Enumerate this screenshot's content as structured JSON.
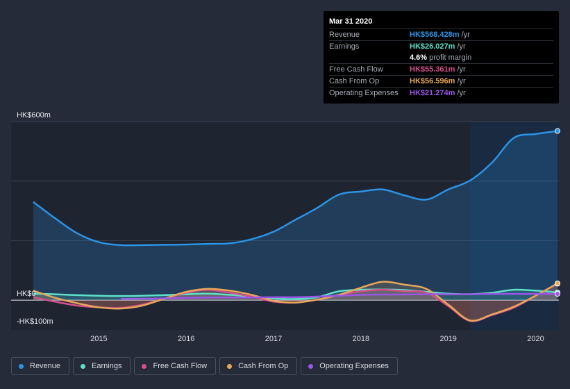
{
  "chart_data": {
    "type": "area",
    "title": "",
    "y_axis_labels": [
      {
        "value": 600,
        "label": "HK$600m"
      },
      {
        "value": 0,
        "label": "HK$0"
      },
      {
        "value": -100,
        "label": "-HK$100m"
      }
    ],
    "ylim": [
      -100,
      600
    ],
    "xlim": [
      2014.2,
      2020.25
    ],
    "x_ticks": [
      2015,
      2016,
      2017,
      2018,
      2019,
      2020
    ],
    "highlight_start": 2019.25,
    "series": [
      {
        "name": "Revenue",
        "color": "#2b94e6",
        "fill": true,
        "points": [
          [
            2014.25,
            330
          ],
          [
            2014.5,
            275
          ],
          [
            2014.75,
            225
          ],
          [
            2015.0,
            195
          ],
          [
            2015.25,
            185
          ],
          [
            2015.5,
            185
          ],
          [
            2015.75,
            186
          ],
          [
            2016.0,
            187
          ],
          [
            2016.25,
            189
          ],
          [
            2016.5,
            191
          ],
          [
            2016.75,
            205
          ],
          [
            2017.0,
            230
          ],
          [
            2017.25,
            270
          ],
          [
            2017.5,
            310
          ],
          [
            2017.75,
            355
          ],
          [
            2018.0,
            365
          ],
          [
            2018.25,
            372
          ],
          [
            2018.5,
            352
          ],
          [
            2018.75,
            338
          ],
          [
            2019.0,
            372
          ],
          [
            2019.25,
            402
          ],
          [
            2019.5,
            462
          ],
          [
            2019.75,
            545
          ],
          [
            2020.0,
            558
          ],
          [
            2020.25,
            568.428
          ]
        ]
      },
      {
        "name": "Earnings",
        "color": "#5ee0c8",
        "fill": true,
        "points": [
          [
            2014.25,
            22
          ],
          [
            2014.5,
            20
          ],
          [
            2014.75,
            17
          ],
          [
            2015.0,
            15
          ],
          [
            2015.25,
            14
          ],
          [
            2015.5,
            15
          ],
          [
            2015.75,
            17
          ],
          [
            2016.0,
            20
          ],
          [
            2016.25,
            22
          ],
          [
            2016.5,
            18
          ],
          [
            2016.75,
            12
          ],
          [
            2017.0,
            6
          ],
          [
            2017.25,
            4
          ],
          [
            2017.5,
            10
          ],
          [
            2017.75,
            30
          ],
          [
            2018.0,
            35
          ],
          [
            2018.25,
            36
          ],
          [
            2018.5,
            34
          ],
          [
            2018.75,
            28
          ],
          [
            2019.0,
            22
          ],
          [
            2019.25,
            20
          ],
          [
            2019.5,
            25
          ],
          [
            2019.75,
            35
          ],
          [
            2020.0,
            32
          ],
          [
            2020.25,
            26.027
          ]
        ]
      },
      {
        "name": "Free Cash Flow",
        "color": "#d64f8c",
        "fill": true,
        "points": [
          [
            2014.25,
            10
          ],
          [
            2014.5,
            -5
          ],
          [
            2014.75,
            -18
          ],
          [
            2015.0,
            -24
          ],
          [
            2015.25,
            -26
          ],
          [
            2015.5,
            -15
          ],
          [
            2015.75,
            5
          ],
          [
            2016.0,
            25
          ],
          [
            2016.25,
            35
          ],
          [
            2016.5,
            25
          ],
          [
            2016.75,
            12
          ],
          [
            2017.0,
            -5
          ],
          [
            2017.25,
            -8
          ],
          [
            2017.5,
            2
          ],
          [
            2017.75,
            18
          ],
          [
            2018.0,
            30
          ],
          [
            2018.25,
            35
          ],
          [
            2018.5,
            30
          ],
          [
            2018.75,
            25
          ],
          [
            2019.0,
            -20
          ],
          [
            2019.25,
            -70
          ],
          [
            2019.5,
            -50
          ],
          [
            2019.75,
            -25
          ],
          [
            2020.0,
            15
          ],
          [
            2020.25,
            55.361
          ]
        ]
      },
      {
        "name": "Cash From Op",
        "color": "#e8a85a",
        "fill": true,
        "points": [
          [
            2014.25,
            32
          ],
          [
            2014.5,
            8
          ],
          [
            2014.75,
            -10
          ],
          [
            2015.0,
            -24
          ],
          [
            2015.25,
            -28
          ],
          [
            2015.5,
            -18
          ],
          [
            2015.75,
            5
          ],
          [
            2016.0,
            28
          ],
          [
            2016.25,
            38
          ],
          [
            2016.5,
            32
          ],
          [
            2016.75,
            18
          ],
          [
            2017.0,
            -2
          ],
          [
            2017.25,
            -8
          ],
          [
            2017.5,
            2
          ],
          [
            2017.75,
            18
          ],
          [
            2018.0,
            42
          ],
          [
            2018.25,
            62
          ],
          [
            2018.5,
            52
          ],
          [
            2018.75,
            38
          ],
          [
            2019.0,
            -15
          ],
          [
            2019.25,
            -68
          ],
          [
            2019.5,
            -48
          ],
          [
            2019.75,
            -22
          ],
          [
            2020.0,
            15
          ],
          [
            2020.25,
            56.596
          ]
        ]
      },
      {
        "name": "Operating Expenses",
        "color": "#9b55e6",
        "fill": false,
        "points": [
          [
            2015.25,
            4
          ],
          [
            2015.5,
            5
          ],
          [
            2015.75,
            6
          ],
          [
            2016.0,
            8
          ],
          [
            2016.25,
            9
          ],
          [
            2016.5,
            9
          ],
          [
            2016.75,
            9
          ],
          [
            2017.0,
            10
          ],
          [
            2017.25,
            10
          ],
          [
            2017.5,
            12
          ],
          [
            2017.75,
            15
          ],
          [
            2018.0,
            18
          ],
          [
            2018.25,
            19
          ],
          [
            2018.5,
            19
          ],
          [
            2018.75,
            20
          ],
          [
            2019.0,
            20
          ],
          [
            2019.25,
            20
          ],
          [
            2019.5,
            21
          ],
          [
            2019.75,
            21
          ],
          [
            2020.0,
            21
          ],
          [
            2020.25,
            21.274
          ]
        ]
      }
    ],
    "tooltip": {
      "date": "Mar 31 2020",
      "rows": [
        {
          "label": "Revenue",
          "value": "HK$568.428m",
          "unit": "/yr",
          "color": "#2b94e6"
        },
        {
          "label": "Earnings",
          "value": "HK$26.027m",
          "unit": "/yr",
          "color": "#5ee0c8"
        },
        {
          "label": "",
          "value": "4.6%",
          "unit": "profit margin",
          "color": "#ffffff"
        },
        {
          "label": "Free Cash Flow",
          "value": "HK$55.361m",
          "unit": "/yr",
          "color": "#d64f8c"
        },
        {
          "label": "Cash From Op",
          "value": "HK$56.596m",
          "unit": "/yr",
          "color": "#e8a85a"
        },
        {
          "label": "Operating Expenses",
          "value": "HK$21.274m",
          "unit": "/yr",
          "color": "#9b55e6"
        }
      ]
    },
    "legend": [
      {
        "name": "Revenue",
        "color": "#2b94e6"
      },
      {
        "name": "Earnings",
        "color": "#5ee0c8"
      },
      {
        "name": "Free Cash Flow",
        "color": "#d64f8c"
      },
      {
        "name": "Cash From Op",
        "color": "#e8a85a"
      },
      {
        "name": "Operating Expenses",
        "color": "#9b55e6"
      }
    ]
  }
}
